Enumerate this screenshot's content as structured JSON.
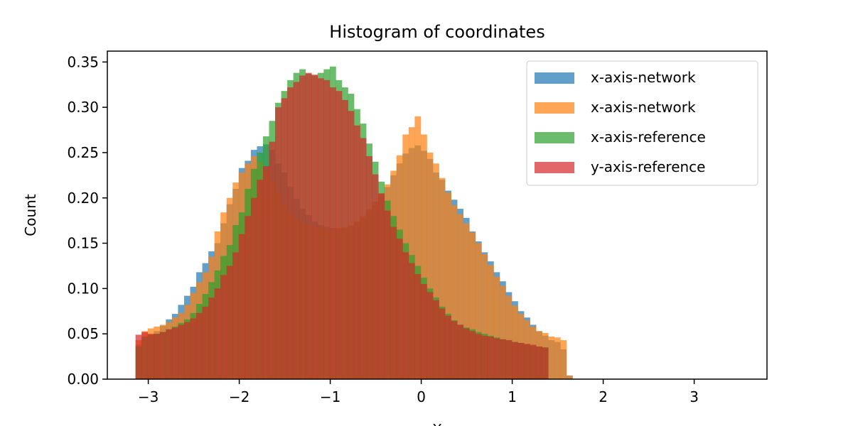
{
  "chart_data": {
    "type": "bar",
    "title": "Histogram of coordinates",
    "xlabel": "Х",
    "ylabel": "Count",
    "xlim": [
      -3.45,
      3.8
    ],
    "ylim": [
      0,
      0.362
    ],
    "xticks": [
      -3,
      -2,
      -1,
      0,
      1,
      2,
      3
    ],
    "xtick_labels": [
      "−3",
      "−2",
      "−1",
      "0",
      "1",
      "2",
      "3"
    ],
    "yticks": [
      0.0,
      0.05,
      0.1,
      0.15,
      0.2,
      0.25,
      0.3,
      0.35
    ],
    "ytick_labels": [
      "0.00",
      "0.05",
      "0.10",
      "0.15",
      "0.20",
      "0.25",
      "0.30",
      "0.35"
    ],
    "grid": false,
    "legend_position": "top-right",
    "bin_start": -3.14,
    "bin_width": 0.0667,
    "series": [
      {
        "name": "x-axis-network",
        "color": "#1f77b4",
        "alpha": 0.7,
        "values": [
          0.038,
          0.045,
          0.049,
          0.053,
          0.059,
          0.066,
          0.072,
          0.082,
          0.092,
          0.102,
          0.118,
          0.128,
          0.141,
          0.15,
          0.172,
          0.193,
          0.21,
          0.233,
          0.241,
          0.253,
          0.257,
          0.259,
          0.253,
          0.238,
          0.228,
          0.212,
          0.199,
          0.188,
          0.181,
          0.174,
          0.17,
          0.168,
          0.167,
          0.166,
          0.167,
          0.168,
          0.172,
          0.178,
          0.185,
          0.192,
          0.201,
          0.212,
          0.225,
          0.238,
          0.249,
          0.255,
          0.258,
          0.252,
          0.243,
          0.228,
          0.22,
          0.208,
          0.198,
          0.188,
          0.178,
          0.163,
          0.152,
          0.14,
          0.13,
          0.118,
          0.108,
          0.096,
          0.086,
          0.075,
          0.068,
          0.06,
          0.053,
          0.048,
          0.043,
          0.041,
          0.033,
          0.004
        ]
      },
      {
        "name": "x-axis-network",
        "color": "#ff7f0e",
        "alpha": 0.7,
        "values": [
          0.043,
          0.053,
          0.056,
          0.058,
          0.06,
          0.063,
          0.068,
          0.073,
          0.082,
          0.095,
          0.107,
          0.118,
          0.135,
          0.163,
          0.184,
          0.2,
          0.217,
          0.228,
          0.238,
          0.246,
          0.24,
          0.23,
          0.218,
          0.205,
          0.193,
          0.183,
          0.176,
          0.172,
          0.17,
          0.168,
          0.167,
          0.166,
          0.166,
          0.167,
          0.168,
          0.17,
          0.174,
          0.18,
          0.188,
          0.196,
          0.205,
          0.215,
          0.23,
          0.247,
          0.27,
          0.278,
          0.29,
          0.27,
          0.25,
          0.238,
          0.222,
          0.206,
          0.192,
          0.182,
          0.172,
          0.162,
          0.15,
          0.138,
          0.126,
          0.113,
          0.103,
          0.092,
          0.081,
          0.072,
          0.065,
          0.058,
          0.053,
          0.051,
          0.047,
          0.046,
          0.043,
          0.004
        ]
      },
      {
        "name": "x-axis-reference",
        "color": "#2ca02c",
        "alpha": 0.7,
        "values": [
          0.036,
          0.047,
          0.049,
          0.05,
          0.052,
          0.055,
          0.058,
          0.062,
          0.066,
          0.073,
          0.083,
          0.094,
          0.107,
          0.12,
          0.136,
          0.148,
          0.17,
          0.184,
          0.21,
          0.232,
          0.25,
          0.268,
          0.285,
          0.305,
          0.318,
          0.33,
          0.338,
          0.342,
          0.337,
          0.335,
          0.338,
          0.342,
          0.345,
          0.33,
          0.322,
          0.315,
          0.298,
          0.282,
          0.26,
          0.24,
          0.218,
          0.197,
          0.18,
          0.165,
          0.15,
          0.137,
          0.125,
          0.112,
          0.1,
          0.09,
          0.08,
          0.072,
          0.065,
          0.06,
          0.057,
          0.055,
          0.052,
          0.05,
          0.048,
          0.046,
          0.044,
          0.043,
          0.041,
          0.04,
          0.038,
          0.037,
          0.036,
          0.035
        ]
      },
      {
        "name": "y-axis-reference",
        "color": "#d62728",
        "alpha": 0.7,
        "values": [
          0.049,
          0.052,
          0.05,
          0.05,
          0.052,
          0.055,
          0.057,
          0.06,
          0.063,
          0.067,
          0.073,
          0.08,
          0.09,
          0.1,
          0.115,
          0.125,
          0.14,
          0.16,
          0.18,
          0.2,
          0.22,
          0.235,
          0.262,
          0.3,
          0.31,
          0.322,
          0.328,
          0.335,
          0.338,
          0.336,
          0.332,
          0.33,
          0.322,
          0.318,
          0.308,
          0.296,
          0.28,
          0.266,
          0.246,
          0.226,
          0.205,
          0.186,
          0.168,
          0.155,
          0.14,
          0.128,
          0.116,
          0.105,
          0.096,
          0.087,
          0.078,
          0.07,
          0.064,
          0.06,
          0.056,
          0.053,
          0.05,
          0.048,
          0.047,
          0.045,
          0.044,
          0.043,
          0.041,
          0.04,
          0.039,
          0.038,
          0.036,
          0.035
        ]
      }
    ]
  }
}
